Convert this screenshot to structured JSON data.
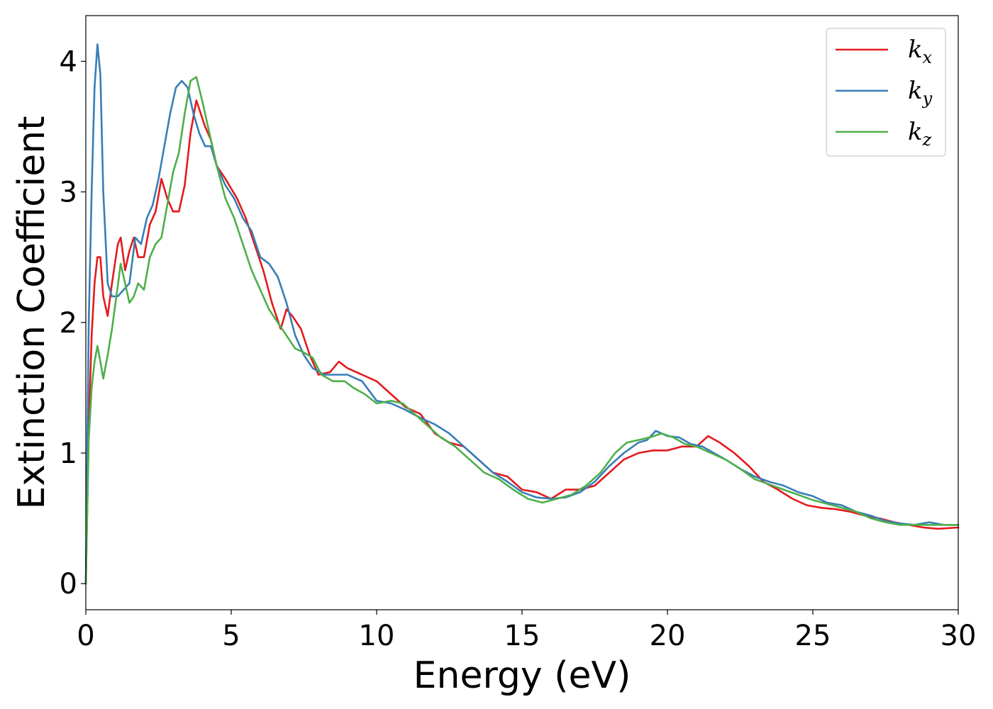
{
  "chart_data": {
    "type": "line",
    "xlabel": "Energy (eV)",
    "ylabel": "Extinction Coefficient",
    "xlim": [
      0,
      30
    ],
    "ylim": [
      -0.2,
      4.35
    ],
    "xticks": [
      0,
      5,
      10,
      15,
      20,
      25,
      30
    ],
    "yticks": [
      0,
      1,
      2,
      3,
      4
    ],
    "grid": false,
    "legend_position": "top-right",
    "series": [
      {
        "name": "k_x",
        "label_base": "k",
        "label_sub": "x",
        "color": "#e41a1c",
        "points": [
          [
            0,
            0
          ],
          [
            0.1,
            1.2
          ],
          [
            0.2,
            1.9
          ],
          [
            0.3,
            2.3
          ],
          [
            0.4,
            2.5
          ],
          [
            0.5,
            2.5
          ],
          [
            0.6,
            2.2
          ],
          [
            0.75,
            2.05
          ],
          [
            0.9,
            2.3
          ],
          [
            1.0,
            2.45
          ],
          [
            1.1,
            2.6
          ],
          [
            1.2,
            2.65
          ],
          [
            1.35,
            2.4
          ],
          [
            1.5,
            2.55
          ],
          [
            1.65,
            2.65
          ],
          [
            1.8,
            2.5
          ],
          [
            2.0,
            2.5
          ],
          [
            2.2,
            2.75
          ],
          [
            2.4,
            2.85
          ],
          [
            2.6,
            3.1
          ],
          [
            2.8,
            2.95
          ],
          [
            3.0,
            2.85
          ],
          [
            3.2,
            2.85
          ],
          [
            3.4,
            3.05
          ],
          [
            3.6,
            3.45
          ],
          [
            3.8,
            3.7
          ],
          [
            3.95,
            3.6
          ],
          [
            4.1,
            3.5
          ],
          [
            4.3,
            3.4
          ],
          [
            4.5,
            3.2
          ],
          [
            4.8,
            3.1
          ],
          [
            5.2,
            2.95
          ],
          [
            5.5,
            2.8
          ],
          [
            5.8,
            2.6
          ],
          [
            6.1,
            2.4
          ],
          [
            6.4,
            2.15
          ],
          [
            6.7,
            1.95
          ],
          [
            6.9,
            2.1
          ],
          [
            7.1,
            2.05
          ],
          [
            7.4,
            1.95
          ],
          [
            7.7,
            1.75
          ],
          [
            8.0,
            1.6
          ],
          [
            8.4,
            1.62
          ],
          [
            8.7,
            1.7
          ],
          [
            9.0,
            1.65
          ],
          [
            9.5,
            1.6
          ],
          [
            10.0,
            1.55
          ],
          [
            10.5,
            1.45
          ],
          [
            11.0,
            1.35
          ],
          [
            11.5,
            1.3
          ],
          [
            12.0,
            1.15
          ],
          [
            12.5,
            1.08
          ],
          [
            13.0,
            1.05
          ],
          [
            13.5,
            0.95
          ],
          [
            14.0,
            0.85
          ],
          [
            14.5,
            0.82
          ],
          [
            15.0,
            0.72
          ],
          [
            15.5,
            0.7
          ],
          [
            16.0,
            0.65
          ],
          [
            16.5,
            0.72
          ],
          [
            17.0,
            0.72
          ],
          [
            17.5,
            0.75
          ],
          [
            18.0,
            0.85
          ],
          [
            18.5,
            0.95
          ],
          [
            19.0,
            1.0
          ],
          [
            19.5,
            1.02
          ],
          [
            20.0,
            1.02
          ],
          [
            20.5,
            1.05
          ],
          [
            21.0,
            1.05
          ],
          [
            21.4,
            1.13
          ],
          [
            21.8,
            1.08
          ],
          [
            22.3,
            1.0
          ],
          [
            22.8,
            0.9
          ],
          [
            23.3,
            0.78
          ],
          [
            23.8,
            0.72
          ],
          [
            24.3,
            0.65
          ],
          [
            24.8,
            0.6
          ],
          [
            25.3,
            0.58
          ],
          [
            25.8,
            0.57
          ],
          [
            26.3,
            0.55
          ],
          [
            26.8,
            0.52
          ],
          [
            27.3,
            0.5
          ],
          [
            27.8,
            0.47
          ],
          [
            28.3,
            0.45
          ],
          [
            28.8,
            0.43
          ],
          [
            29.3,
            0.42
          ],
          [
            30.0,
            0.43
          ]
        ]
      },
      {
        "name": "k_y",
        "label_base": "k",
        "label_sub": "y",
        "color": "#377eb8",
        "points": [
          [
            0,
            0
          ],
          [
            0.1,
            2.0
          ],
          [
            0.2,
            3.0
          ],
          [
            0.3,
            3.8
          ],
          [
            0.4,
            4.13
          ],
          [
            0.5,
            3.9
          ],
          [
            0.6,
            3.0
          ],
          [
            0.75,
            2.3
          ],
          [
            0.9,
            2.2
          ],
          [
            1.1,
            2.2
          ],
          [
            1.3,
            2.25
          ],
          [
            1.5,
            2.3
          ],
          [
            1.7,
            2.65
          ],
          [
            1.9,
            2.6
          ],
          [
            2.1,
            2.8
          ],
          [
            2.3,
            2.9
          ],
          [
            2.5,
            3.1
          ],
          [
            2.7,
            3.35
          ],
          [
            2.9,
            3.6
          ],
          [
            3.1,
            3.8
          ],
          [
            3.3,
            3.85
          ],
          [
            3.5,
            3.8
          ],
          [
            3.7,
            3.6
          ],
          [
            3.9,
            3.45
          ],
          [
            4.1,
            3.35
          ],
          [
            4.3,
            3.35
          ],
          [
            4.5,
            3.2
          ],
          [
            4.8,
            3.05
          ],
          [
            5.1,
            2.95
          ],
          [
            5.4,
            2.8
          ],
          [
            5.7,
            2.7
          ],
          [
            6.0,
            2.5
          ],
          [
            6.3,
            2.45
          ],
          [
            6.6,
            2.35
          ],
          [
            6.9,
            2.15
          ],
          [
            7.2,
            1.9
          ],
          [
            7.5,
            1.75
          ],
          [
            7.8,
            1.65
          ],
          [
            8.2,
            1.6
          ],
          [
            8.6,
            1.6
          ],
          [
            9.0,
            1.6
          ],
          [
            9.5,
            1.55
          ],
          [
            10.0,
            1.4
          ],
          [
            10.5,
            1.38
          ],
          [
            11.0,
            1.33
          ],
          [
            11.5,
            1.27
          ],
          [
            12.0,
            1.22
          ],
          [
            12.5,
            1.15
          ],
          [
            13.0,
            1.05
          ],
          [
            13.5,
            0.95
          ],
          [
            14.0,
            0.85
          ],
          [
            14.5,
            0.78
          ],
          [
            15.0,
            0.7
          ],
          [
            15.5,
            0.66
          ],
          [
            16.0,
            0.65
          ],
          [
            16.5,
            0.66
          ],
          [
            17.0,
            0.7
          ],
          [
            17.5,
            0.78
          ],
          [
            18.0,
            0.9
          ],
          [
            18.5,
            1.0
          ],
          [
            19.0,
            1.08
          ],
          [
            19.3,
            1.1
          ],
          [
            19.6,
            1.17
          ],
          [
            20.0,
            1.13
          ],
          [
            20.4,
            1.12
          ],
          [
            20.8,
            1.07
          ],
          [
            21.2,
            1.05
          ],
          [
            21.6,
            1.0
          ],
          [
            22.0,
            0.95
          ],
          [
            22.5,
            0.88
          ],
          [
            23.0,
            0.82
          ],
          [
            23.5,
            0.78
          ],
          [
            24.0,
            0.75
          ],
          [
            24.5,
            0.7
          ],
          [
            25.0,
            0.67
          ],
          [
            25.5,
            0.62
          ],
          [
            26.0,
            0.6
          ],
          [
            26.5,
            0.55
          ],
          [
            27.0,
            0.52
          ],
          [
            27.5,
            0.48
          ],
          [
            28.0,
            0.46
          ],
          [
            28.5,
            0.45
          ],
          [
            29.0,
            0.47
          ],
          [
            29.5,
            0.45
          ],
          [
            30.0,
            0.45
          ]
        ]
      },
      {
        "name": "k_z",
        "label_base": "k",
        "label_sub": "z",
        "color": "#4daf4a",
        "points": [
          [
            0,
            0
          ],
          [
            0.1,
            1.1
          ],
          [
            0.2,
            1.5
          ],
          [
            0.3,
            1.7
          ],
          [
            0.4,
            1.82
          ],
          [
            0.5,
            1.7
          ],
          [
            0.6,
            1.57
          ],
          [
            0.75,
            1.75
          ],
          [
            0.9,
            1.95
          ],
          [
            1.05,
            2.2
          ],
          [
            1.2,
            2.45
          ],
          [
            1.35,
            2.3
          ],
          [
            1.5,
            2.15
          ],
          [
            1.65,
            2.2
          ],
          [
            1.8,
            2.3
          ],
          [
            2.0,
            2.25
          ],
          [
            2.2,
            2.5
          ],
          [
            2.4,
            2.6
          ],
          [
            2.6,
            2.65
          ],
          [
            2.8,
            2.9
          ],
          [
            3.0,
            3.15
          ],
          [
            3.2,
            3.3
          ],
          [
            3.4,
            3.6
          ],
          [
            3.6,
            3.85
          ],
          [
            3.8,
            3.88
          ],
          [
            4.0,
            3.7
          ],
          [
            4.2,
            3.5
          ],
          [
            4.5,
            3.2
          ],
          [
            4.8,
            2.95
          ],
          [
            5.1,
            2.8
          ],
          [
            5.4,
            2.6
          ],
          [
            5.7,
            2.4
          ],
          [
            6.0,
            2.25
          ],
          [
            6.3,
            2.1
          ],
          [
            6.6,
            2.0
          ],
          [
            6.9,
            1.9
          ],
          [
            7.2,
            1.8
          ],
          [
            7.5,
            1.77
          ],
          [
            7.8,
            1.73
          ],
          [
            8.1,
            1.6
          ],
          [
            8.5,
            1.55
          ],
          [
            8.9,
            1.55
          ],
          [
            9.2,
            1.5
          ],
          [
            9.6,
            1.45
          ],
          [
            10.0,
            1.38
          ],
          [
            10.5,
            1.4
          ],
          [
            10.9,
            1.38
          ],
          [
            11.3,
            1.3
          ],
          [
            11.7,
            1.22
          ],
          [
            12.2,
            1.12
          ],
          [
            12.7,
            1.05
          ],
          [
            13.2,
            0.95
          ],
          [
            13.7,
            0.85
          ],
          [
            14.2,
            0.8
          ],
          [
            14.7,
            0.72
          ],
          [
            15.2,
            0.65
          ],
          [
            15.7,
            0.62
          ],
          [
            16.2,
            0.65
          ],
          [
            16.7,
            0.68
          ],
          [
            17.2,
            0.75
          ],
          [
            17.7,
            0.85
          ],
          [
            18.2,
            1.0
          ],
          [
            18.6,
            1.08
          ],
          [
            19.0,
            1.1
          ],
          [
            19.4,
            1.12
          ],
          [
            19.8,
            1.15
          ],
          [
            20.2,
            1.12
          ],
          [
            20.6,
            1.07
          ],
          [
            21.0,
            1.05
          ],
          [
            21.5,
            1.0
          ],
          [
            22.0,
            0.95
          ],
          [
            22.5,
            0.88
          ],
          [
            23.0,
            0.8
          ],
          [
            23.5,
            0.76
          ],
          [
            24.0,
            0.72
          ],
          [
            24.5,
            0.68
          ],
          [
            25.0,
            0.64
          ],
          [
            25.5,
            0.61
          ],
          [
            26.0,
            0.58
          ],
          [
            26.5,
            0.55
          ],
          [
            27.0,
            0.5
          ],
          [
            27.5,
            0.47
          ],
          [
            28.0,
            0.45
          ],
          [
            28.5,
            0.45
          ],
          [
            29.0,
            0.45
          ],
          [
            29.5,
            0.45
          ],
          [
            30.0,
            0.45
          ]
        ]
      }
    ]
  }
}
